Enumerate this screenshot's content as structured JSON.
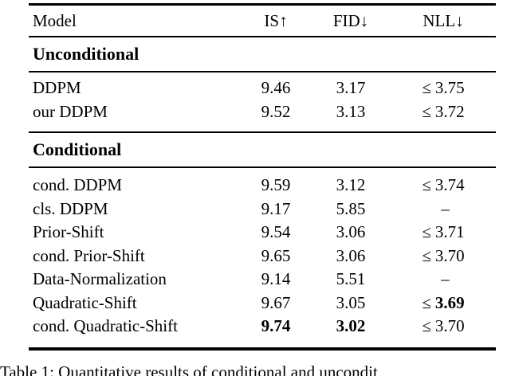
{
  "page": {
    "background_color": "#ffffff",
    "text_color": "#000000",
    "rule_color": "#000000"
  },
  "table": {
    "header": {
      "model": "Model",
      "columns": [
        {
          "label": "IS",
          "arrow": "↑"
        },
        {
          "label": "FID",
          "arrow": "↓"
        },
        {
          "label": "NLL",
          "arrow": "↓"
        }
      ]
    },
    "sections": [
      {
        "title": "Unconditional"
      },
      {
        "title": "Conditional"
      }
    ],
    "rows": [
      {
        "model": "DDPM",
        "is": "9.46",
        "fid": "3.17",
        "nll_prefix": "≤",
        "nll": "3.75"
      },
      {
        "model": "our DDPM",
        "is": "9.52",
        "fid": "3.13",
        "nll_prefix": "≤",
        "nll": "3.72"
      },
      {
        "model": "cond. DDPM",
        "is": "9.59",
        "fid": "3.12",
        "nll_prefix": "≤",
        "nll": "3.74"
      },
      {
        "model": "cls. DDPM",
        "is": "9.17",
        "fid": "5.85",
        "nll_prefix": "",
        "nll": "–"
      },
      {
        "model": "Prior-Shift",
        "is": "9.54",
        "fid": "3.06",
        "nll_prefix": "≤",
        "nll": "3.71"
      },
      {
        "model": "cond. Prior-Shift",
        "is": "9.65",
        "fid": "3.06",
        "nll_prefix": "≤",
        "nll": "3.70"
      },
      {
        "model": "Data-Normalization",
        "is": "9.14",
        "fid": "5.51",
        "nll_prefix": "",
        "nll": "–"
      },
      {
        "model": "Quadratic-Shift",
        "is": "9.67",
        "fid": "3.05",
        "nll_prefix": "≤",
        "nll": "3.69"
      },
      {
        "model": "cond. Quadratic-Shift",
        "is": "9.74",
        "fid": "3.02",
        "nll_prefix": "≤",
        "nll": "3.70"
      }
    ]
  },
  "caption": {
    "text": "Table 1: Quantitative results of conditional and uncondit"
  }
}
